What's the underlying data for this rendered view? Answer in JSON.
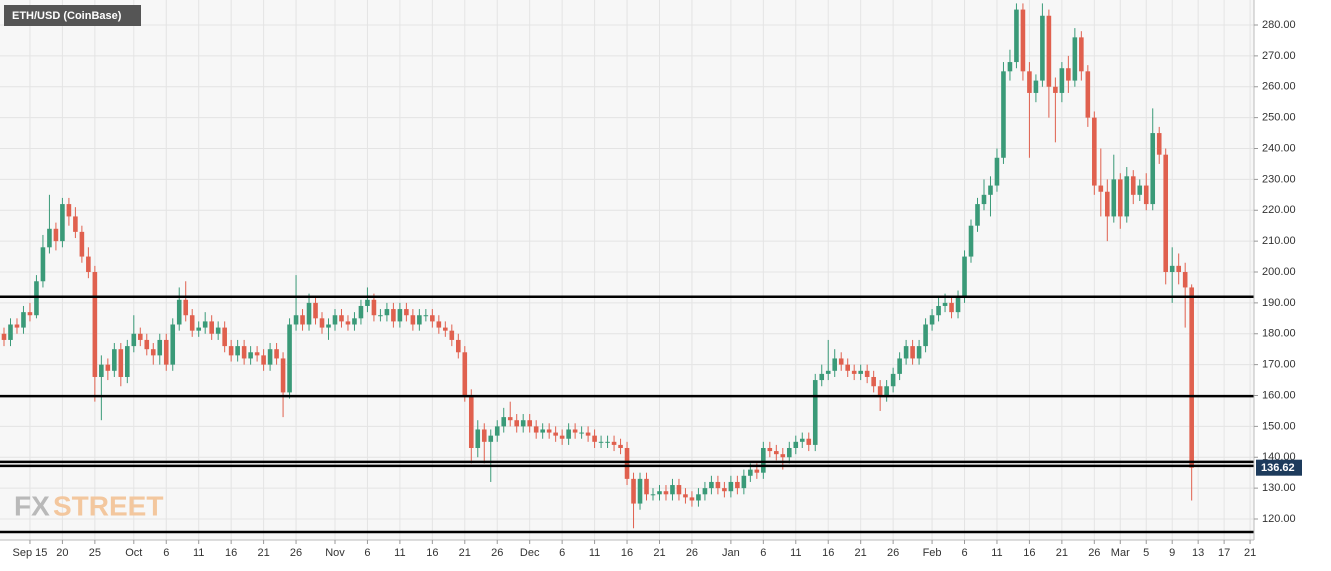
{
  "chart_data": {
    "type": "candlestick",
    "title": "ETH/USD (CoinBase)",
    "watermark": [
      "FX",
      "STREET"
    ],
    "up_color": "#3a9a78",
    "down_color": "#e0604e",
    "grid": true,
    "categories": [
      "Sep 11",
      "Sep 12",
      "Sep 13",
      "Sep 14",
      "Sep 15",
      "Sep 16",
      "Sep 17",
      "Sep 18",
      "Sep 19",
      "Sep 20",
      "Sep 21",
      "Sep 22",
      "Sep 23",
      "Sep 24",
      "Sep 25",
      "Sep 26",
      "Sep 27",
      "Sep 28",
      "Sep 29",
      "Sep 30",
      "Oct 1",
      "Oct 2",
      "Oct 3",
      "Oct 4",
      "Oct 5",
      "Oct 6",
      "Oct 7",
      "Oct 8",
      "Oct 9",
      "Oct 10",
      "Oct 11",
      "Oct 12",
      "Oct 13",
      "Oct 14",
      "Oct 15",
      "Oct 16",
      "Oct 17",
      "Oct 18",
      "Oct 19",
      "Oct 20",
      "Oct 21",
      "Oct 22",
      "Oct 23",
      "Oct 24",
      "Oct 25",
      "Oct 26",
      "Oct 27",
      "Oct 28",
      "Oct 29",
      "Oct 30",
      "Oct 31",
      "Nov 1",
      "Nov 2",
      "Nov 3",
      "Nov 4",
      "Nov 5",
      "Nov 6",
      "Nov 7",
      "Nov 8",
      "Nov 9",
      "Nov 10",
      "Nov 11",
      "Nov 12",
      "Nov 13",
      "Nov 14",
      "Nov 15",
      "Nov 16",
      "Nov 17",
      "Nov 18",
      "Nov 19",
      "Nov 20",
      "Nov 21",
      "Nov 22",
      "Nov 23",
      "Nov 24",
      "Nov 25",
      "Nov 26",
      "Nov 27",
      "Nov 28",
      "Nov 29",
      "Nov 30",
      "Dec 1",
      "Dec 2",
      "Dec 3",
      "Dec 4",
      "Dec 5",
      "Dec 6",
      "Dec 7",
      "Dec 8",
      "Dec 9",
      "Dec 10",
      "Dec 11",
      "Dec 12",
      "Dec 13",
      "Dec 14",
      "Dec 15",
      "Dec 16",
      "Dec 17",
      "Dec 18",
      "Dec 19",
      "Dec 20",
      "Dec 21",
      "Dec 22",
      "Dec 23",
      "Dec 24",
      "Dec 25",
      "Dec 26",
      "Dec 27",
      "Dec 28",
      "Dec 29",
      "Dec 30",
      "Dec 31",
      "Jan 1",
      "Jan 2",
      "Jan 3",
      "Jan 4",
      "Jan 5",
      "Jan 6",
      "Jan 7",
      "Jan 8",
      "Jan 9",
      "Jan 10",
      "Jan 11",
      "Jan 12",
      "Jan 13",
      "Jan 14",
      "Jan 15",
      "Jan 16",
      "Jan 17",
      "Jan 18",
      "Jan 19",
      "Jan 20",
      "Jan 21",
      "Jan 22",
      "Jan 23",
      "Jan 24",
      "Jan 25",
      "Jan 26",
      "Jan 27",
      "Jan 28",
      "Jan 29",
      "Jan 30",
      "Jan 31",
      "Feb 1",
      "Feb 2",
      "Feb 3",
      "Feb 4",
      "Feb 5",
      "Feb 6",
      "Feb 7",
      "Feb 8",
      "Feb 9",
      "Feb 10",
      "Feb 11",
      "Feb 12",
      "Feb 13",
      "Feb 14",
      "Feb 15",
      "Feb 16",
      "Feb 17",
      "Feb 18",
      "Feb 19",
      "Feb 20",
      "Feb 21",
      "Feb 22",
      "Feb 23",
      "Feb 24",
      "Feb 25",
      "Feb 26",
      "Feb 27",
      "Feb 28",
      "Feb 29",
      "Mar 1",
      "Mar 2",
      "Mar 3",
      "Mar 4",
      "Mar 5",
      "Mar 6",
      "Mar 7",
      "Mar 8",
      "Mar 9",
      "Mar 10",
      "Mar 11",
      "Mar 12",
      "Mar 13",
      "Mar 14",
      "Mar 15",
      "Mar 16",
      "Mar 17",
      "Mar 18",
      "Mar 19",
      "Mar 20",
      "Mar 21"
    ],
    "open": [
      180,
      178,
      183,
      182,
      187,
      186,
      197,
      208,
      214,
      210,
      222,
      218,
      213,
      205,
      200,
      166,
      170,
      168,
      175,
      166,
      176,
      180,
      178,
      175,
      173,
      178,
      170,
      183,
      191,
      186,
      181,
      182,
      184,
      180,
      182,
      176,
      173,
      176,
      172,
      174,
      173,
      170,
      175,
      172,
      161,
      183,
      186,
      183,
      190,
      185,
      182,
      183,
      186,
      184,
      183,
      185,
      189,
      191,
      186,
      186,
      188,
      184,
      188,
      186,
      183,
      186,
      186,
      184,
      182,
      181,
      178,
      174,
      160,
      143,
      149,
      145,
      147,
      150,
      153,
      152,
      150,
      152,
      150,
      148,
      149,
      148,
      147,
      146,
      149,
      148,
      148,
      147,
      145,
      145,
      145,
      144,
      143,
      133,
      125,
      133,
      128,
      128,
      129,
      128,
      131,
      128,
      127,
      126,
      128,
      130,
      132,
      130,
      129,
      132,
      130,
      134,
      136,
      135,
      143,
      142,
      141,
      140,
      143,
      145,
      146,
      144,
      165,
      167,
      168,
      172,
      170,
      168,
      167,
      168,
      166,
      163,
      160,
      163,
      167,
      172,
      176,
      172,
      176,
      183,
      186,
      189,
      190,
      187,
      192,
      205,
      215,
      222,
      225,
      228,
      237,
      265,
      268,
      285,
      265,
      258,
      262,
      283,
      260,
      258,
      266,
      262,
      276,
      265,
      250,
      228,
      226,
      218,
      230,
      218,
      231,
      225,
      228,
      222,
      245,
      238,
      200,
      202,
      200,
      195,
      null,
      null,
      null,
      null,
      null,
      null,
      null,
      null,
      null
    ],
    "high": [
      182,
      185,
      185,
      189,
      190,
      199,
      212,
      225,
      216,
      224,
      224,
      221,
      215,
      208,
      202,
      173,
      172,
      177,
      177,
      178,
      186,
      182,
      180,
      177,
      180,
      180,
      185,
      195,
      197,
      188,
      184,
      187,
      186,
      184,
      184,
      178,
      178,
      178,
      176,
      176,
      175,
      177,
      177,
      174,
      185,
      199,
      188,
      193,
      192,
      187,
      185,
      188,
      188,
      186,
      187,
      191,
      195,
      193,
      188,
      190,
      190,
      190,
      190,
      188,
      188,
      188,
      188,
      186,
      184,
      183,
      180,
      176,
      162,
      152,
      151,
      149,
      152,
      156,
      158,
      154,
      154,
      154,
      152,
      151,
      151,
      150,
      149,
      151,
      151,
      150,
      150,
      149,
      147,
      147,
      147,
      146,
      145,
      135,
      135,
      135,
      130,
      131,
      131,
      133,
      133,
      130,
      129,
      130,
      132,
      134,
      134,
      132,
      134,
      134,
      136,
      138,
      138,
      145,
      145,
      144,
      143,
      145,
      147,
      148,
      148,
      167,
      170,
      178,
      175,
      174,
      172,
      170,
      170,
      170,
      168,
      165,
      165,
      169,
      174,
      178,
      178,
      178,
      185,
      188,
      192,
      193,
      192,
      194,
      207,
      217,
      224,
      230,
      231,
      240,
      268,
      272,
      287,
      287,
      268,
      264,
      287,
      285,
      263,
      268,
      270,
      279,
      278,
      267,
      252,
      240,
      230,
      238,
      232,
      234,
      233,
      230,
      232,
      253,
      247,
      240,
      208,
      206,
      203,
      196,
      null,
      null,
      null,
      null,
      null,
      null,
      null,
      null,
      null
    ],
    "low": [
      176,
      176,
      180,
      180,
      184,
      185,
      195,
      206,
      207,
      208,
      215,
      211,
      203,
      198,
      158,
      152,
      165,
      166,
      163,
      164,
      174,
      176,
      173,
      170,
      170,
      168,
      168,
      181,
      184,
      179,
      179,
      180,
      178,
      178,
      174,
      171,
      171,
      170,
      170,
      171,
      168,
      168,
      170,
      153,
      159,
      181,
      181,
      181,
      183,
      180,
      178,
      181,
      182,
      181,
      181,
      183,
      187,
      184,
      184,
      184,
      182,
      182,
      184,
      181,
      181,
      184,
      182,
      180,
      179,
      176,
      172,
      158,
      138,
      140,
      138,
      132,
      145,
      148,
      150,
      148,
      148,
      148,
      146,
      146,
      146,
      145,
      144,
      144,
      146,
      146,
      145,
      143,
      143,
      143,
      142,
      141,
      131,
      117,
      123,
      126,
      126,
      126,
      126,
      126,
      126,
      125,
      124,
      124,
      126,
      128,
      128,
      127,
      127,
      128,
      128,
      132,
      133,
      133,
      140,
      139,
      136,
      138,
      141,
      143,
      142,
      142,
      163,
      165,
      166,
      168,
      166,
      165,
      165,
      164,
      161,
      155,
      158,
      161,
      165,
      170,
      170,
      170,
      174,
      181,
      184,
      187,
      185,
      185,
      190,
      203,
      213,
      220,
      218,
      226,
      235,
      262,
      266,
      262,
      237,
      255,
      260,
      250,
      242,
      255,
      258,
      260,
      262,
      247,
      225,
      218,
      210,
      216,
      214,
      216,
      222,
      223,
      220,
      220,
      235,
      196,
      190,
      196,
      182,
      126,
      null,
      null,
      null,
      null,
      null,
      null,
      null,
      null,
      null
    ],
    "close": [
      178,
      183,
      182,
      187,
      186,
      197,
      208,
      214,
      210,
      222,
      218,
      213,
      205,
      200,
      166,
      170,
      168,
      175,
      166,
      176,
      180,
      178,
      175,
      173,
      178,
      170,
      183,
      191,
      186,
      181,
      182,
      184,
      180,
      182,
      176,
      173,
      176,
      172,
      174,
      173,
      170,
      175,
      172,
      161,
      183,
      186,
      183,
      190,
      185,
      182,
      183,
      186,
      184,
      183,
      185,
      189,
      191,
      186,
      186,
      188,
      184,
      188,
      186,
      183,
      186,
      186,
      184,
      182,
      181,
      178,
      174,
      160,
      143,
      149,
      145,
      147,
      150,
      153,
      152,
      150,
      152,
      150,
      148,
      149,
      148,
      147,
      146,
      149,
      148,
      148,
      147,
      145,
      145,
      145,
      144,
      143,
      133,
      125,
      133,
      128,
      128,
      129,
      128,
      131,
      128,
      127,
      126,
      128,
      130,
      132,
      130,
      129,
      132,
      130,
      134,
      136,
      135,
      143,
      142,
      141,
      140,
      143,
      145,
      146,
      144,
      165,
      167,
      168,
      172,
      170,
      168,
      167,
      168,
      166,
      163,
      160,
      163,
      167,
      172,
      176,
      172,
      176,
      183,
      186,
      189,
      190,
      187,
      192,
      205,
      215,
      222,
      225,
      228,
      237,
      265,
      268,
      285,
      265,
      258,
      262,
      283,
      260,
      258,
      266,
      262,
      276,
      265,
      250,
      228,
      226,
      218,
      230,
      218,
      231,
      225,
      228,
      222,
      245,
      238,
      200,
      202,
      200,
      195,
      136.62,
      null,
      null,
      null,
      null,
      null,
      null,
      null,
      null,
      null
    ],
    "levels": [
      192,
      159.8,
      138.5,
      137.2,
      115.8
    ],
    "ylim": [
      113.2,
      288.1
    ],
    "yticks": [
      {
        "value": 120,
        "label": "120.00"
      },
      {
        "value": 130,
        "label": "130.00"
      },
      {
        "value": 140,
        "label": "140.00"
      },
      {
        "value": 150,
        "label": "150.00"
      },
      {
        "value": 160,
        "label": "160.00"
      },
      {
        "value": 170,
        "label": "170.00"
      },
      {
        "value": 180,
        "label": "180.00"
      },
      {
        "value": 190,
        "label": "190.00"
      },
      {
        "value": 200,
        "label": "200.00"
      },
      {
        "value": 210,
        "label": "210.00"
      },
      {
        "value": 220,
        "label": "220.00"
      },
      {
        "value": 230,
        "label": "230.00"
      },
      {
        "value": 240,
        "label": "240.00"
      },
      {
        "value": 250,
        "label": "250.00"
      },
      {
        "value": 260,
        "label": "260.00"
      },
      {
        "value": 270,
        "label": "270.00"
      },
      {
        "value": 280,
        "label": "280.00"
      }
    ],
    "xticks": [
      {
        "value": "Sep 15",
        "label": "Sep 15"
      },
      {
        "value": "Sep 20",
        "label": "20"
      },
      {
        "value": "Sep 25",
        "label": "25"
      },
      {
        "value": "Oct 1",
        "label": "Oct"
      },
      {
        "value": "Oct 6",
        "label": "6"
      },
      {
        "value": "Oct 11",
        "label": "11"
      },
      {
        "value": "Oct 16",
        "label": "16"
      },
      {
        "value": "Oct 21",
        "label": "21"
      },
      {
        "value": "Oct 26",
        "label": "26"
      },
      {
        "value": "Nov 1",
        "label": "Nov"
      },
      {
        "value": "Nov 6",
        "label": "6"
      },
      {
        "value": "Nov 11",
        "label": "11"
      },
      {
        "value": "Nov 16",
        "label": "16"
      },
      {
        "value": "Nov 21",
        "label": "21"
      },
      {
        "value": "Nov 26",
        "label": "26"
      },
      {
        "value": "Dec 1",
        "label": "Dec"
      },
      {
        "value": "Dec 6",
        "label": "6"
      },
      {
        "value": "Dec 11",
        "label": "11"
      },
      {
        "value": "Dec 16",
        "label": "16"
      },
      {
        "value": "Dec 21",
        "label": "21"
      },
      {
        "value": "Dec 26",
        "label": "26"
      },
      {
        "value": "Jan 1",
        "label": "Jan"
      },
      {
        "value": "Jan 6",
        "label": "6"
      },
      {
        "value": "Jan 11",
        "label": "11"
      },
      {
        "value": "Jan 16",
        "label": "16"
      },
      {
        "value": "Jan 21",
        "label": "21"
      },
      {
        "value": "Jan 26",
        "label": "26"
      },
      {
        "value": "Feb 1",
        "label": "Feb"
      },
      {
        "value": "Feb 6",
        "label": "6"
      },
      {
        "value": "Feb 11",
        "label": "11"
      },
      {
        "value": "Feb 16",
        "label": "16"
      },
      {
        "value": "Feb 21",
        "label": "21"
      },
      {
        "value": "Feb 26",
        "label": "26"
      },
      {
        "value": "Mar 1",
        "label": "Mar"
      },
      {
        "value": "Mar 5",
        "label": "5"
      },
      {
        "value": "Mar 9",
        "label": "9"
      },
      {
        "value": "Mar 13",
        "label": "13"
      },
      {
        "value": "Mar 17",
        "label": "17"
      },
      {
        "value": "Mar 21",
        "label": "21"
      }
    ]
  }
}
